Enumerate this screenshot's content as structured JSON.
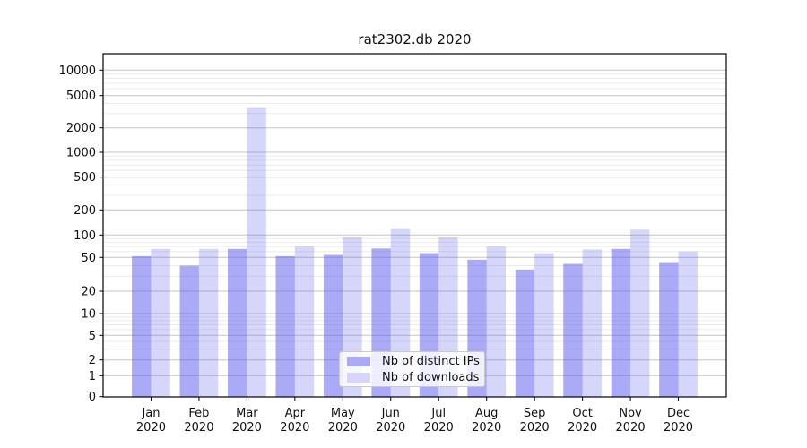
{
  "figure": {
    "title": "rat2302.db 2020"
  },
  "chart_data": {
    "type": "bar",
    "title": "rat2302.db 2020",
    "categories": [
      "Jan 2020",
      "Feb 2020",
      "Mar 2020",
      "Apr 2020",
      "May 2020",
      "Jun 2020",
      "Jul 2020",
      "Aug 2020",
      "Sep 2020",
      "Oct 2020",
      "Nov 2020",
      "Dec 2020"
    ],
    "series": [
      {
        "name": "Nb of distinct IPs",
        "color": "#5555f0",
        "alpha": 0.5,
        "swatch": "#aaaaf7",
        "values": [
          52,
          40,
          65,
          52,
          54,
          66,
          57,
          47,
          36,
          42,
          65,
          44
        ]
      },
      {
        "name": "Nb of downloads",
        "color": "#5555f0",
        "alpha": 0.24,
        "swatch": "#d6d6fb",
        "values": [
          65,
          65,
          3600,
          70,
          93,
          118,
          93,
          70,
          57,
          64,
          116,
          60
        ]
      }
    ],
    "yscale": "symlog",
    "yticks": [
      0,
      1,
      2,
      5,
      10,
      20,
      50,
      100,
      200,
      500,
      1000,
      2000,
      5000,
      10000
    ],
    "ylim": [
      0,
      16000
    ],
    "xlabel": "",
    "ylabel": "",
    "grid": "horizontal major+minor",
    "legend_position": "lower center inside"
  }
}
